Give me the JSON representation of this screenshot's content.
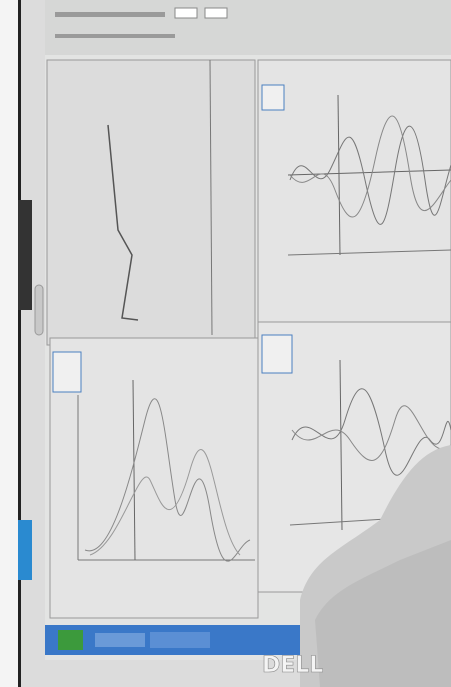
{
  "brand": "DELL"
}
